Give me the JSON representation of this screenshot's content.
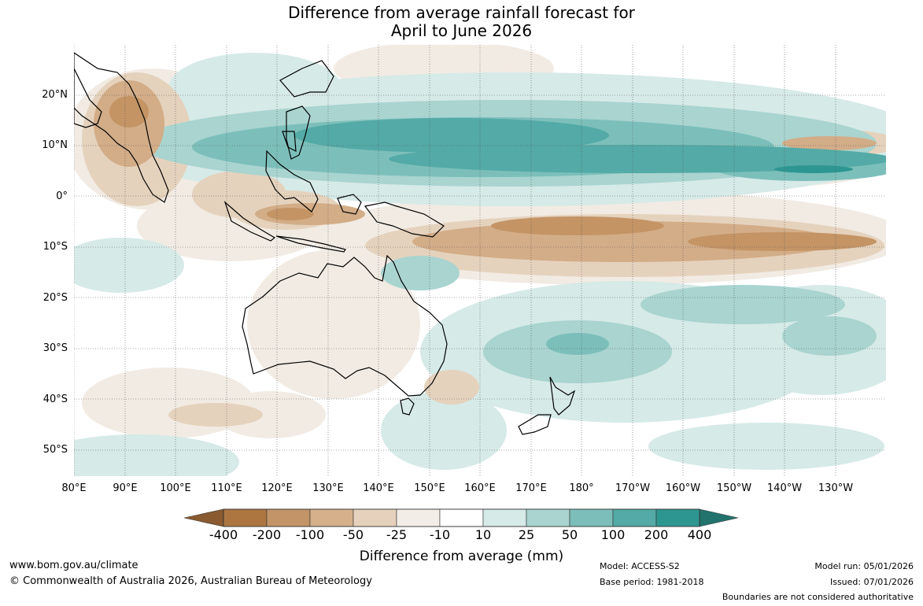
{
  "title": {
    "line1": "Difference from average rainfall forecast for",
    "line2": "April to June 2026"
  },
  "lat_labels": [
    "20°N",
    "10°N",
    "0°",
    "10°S",
    "20°S",
    "30°S",
    "40°S",
    "50°S"
  ],
  "lon_labels": [
    "80°E",
    "90°E",
    "100°E",
    "110°E",
    "120°E",
    "130°E",
    "140°E",
    "150°E",
    "160°E",
    "170°E",
    "180°",
    "170°W",
    "160°W",
    "150°W",
    "140°W",
    "130°W"
  ],
  "colorbar": {
    "ticks": [
      "-400",
      "-200",
      "-100",
      "-50",
      "-25",
      "-10",
      "10",
      "25",
      "50",
      "100",
      "200",
      "400"
    ],
    "colors": [
      "#8a5a30",
      "#ad7641",
      "#c39467",
      "#d5b08b",
      "#e6d1bc",
      "#f2ede6",
      "#ffffff",
      "#d6eae8",
      "#a9d4d0",
      "#7cbfba",
      "#53aaa6",
      "#2e9690",
      "#22726d"
    ],
    "label": "Difference from average (mm)"
  },
  "footer": {
    "website": "www.bom.gov.au/climate",
    "copyright": "© Commonwealth of Australia 2026, Australian Bureau of Meteorology",
    "model": "Model: ACCESS-S2",
    "base_period": "Base period: 1981-2018",
    "model_run": "Model run: 05/01/2026",
    "issued": "Issued: 07/01/2026",
    "disclaimer": "Boundaries are not considered authoritative"
  }
}
